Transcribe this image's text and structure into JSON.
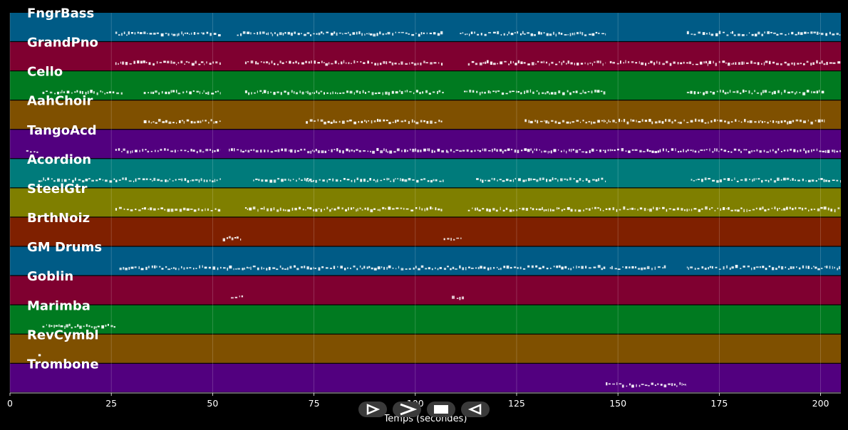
{
  "chart_data": {
    "type": "piano-roll",
    "xlabel": "Temps (secondes)",
    "xlim": [
      0,
      205
    ],
    "xticks": [
      0,
      25,
      50,
      75,
      100,
      125,
      150,
      175,
      200
    ],
    "grid": true,
    "tracks": [
      {
        "name": "FngrBass",
        "color": "#005b86",
        "segments": [
          [
            26,
            52
          ],
          [
            56,
            107
          ],
          [
            111,
            147
          ],
          [
            167,
            205
          ]
        ]
      },
      {
        "name": "GrandPno",
        "color": "#7f0030",
        "segments": [
          [
            26,
            52
          ],
          [
            58,
            107
          ],
          [
            113,
            147
          ],
          [
            148,
            205
          ]
        ]
      },
      {
        "name": "Cello",
        "color": "#007a20",
        "segments": [
          [
            8,
            28
          ],
          [
            33,
            52
          ],
          [
            58,
            107
          ],
          [
            112,
            147
          ],
          [
            167,
            201
          ]
        ]
      },
      {
        "name": "AahChoir",
        "color": "#7f5000",
        "segments": [
          [
            33,
            52
          ],
          [
            73,
            107
          ],
          [
            127,
            201
          ]
        ]
      },
      {
        "name": "TangoAcd",
        "color": "#52007f",
        "segments": [
          [
            4,
            7
          ],
          [
            26,
            52
          ],
          [
            54,
            108
          ],
          [
            108,
            205
          ]
        ]
      },
      {
        "name": "Acordion",
        "color": "#007b7b",
        "segments": [
          [
            7,
            52
          ],
          [
            60,
            75
          ],
          [
            73,
            107
          ],
          [
            115,
            147
          ],
          [
            168,
            205
          ]
        ]
      },
      {
        "name": "SteelGtr",
        "color": "#7f7f00",
        "segments": [
          [
            26,
            52
          ],
          [
            58,
            107
          ],
          [
            113,
            205
          ]
        ]
      },
      {
        "name": "BrthNoiz",
        "color": "#7f2000",
        "segments": [
          [
            52.5,
            57
          ],
          [
            107,
            111.5
          ]
        ]
      },
      {
        "name": "GM Drums",
        "color": "#005b86",
        "segments": [
          [
            27,
            147
          ],
          [
            148,
            162
          ],
          [
            167,
            205
          ]
        ]
      },
      {
        "name": "Goblin",
        "color": "#7f0030",
        "segments": [
          [
            54.5,
            57.5
          ],
          [
            109,
            112
          ]
        ]
      },
      {
        "name": "Marimba",
        "color": "#007a20",
        "segments": [
          [
            8,
            26
          ]
        ]
      },
      {
        "name": "RevCymbl",
        "color": "#7f5000",
        "segments": [
          [
            7,
            7.6
          ]
        ]
      },
      {
        "name": "Trombone",
        "color": "#52007f",
        "segments": [
          [
            147,
            167
          ]
        ]
      }
    ]
  },
  "controls": {
    "play_forward": {
      "glyph": "⊳"
    },
    "fast_forward": {
      "glyph": ">"
    },
    "stop": {
      "glyph": "■"
    },
    "rewind": {
      "glyph": "<"
    }
  }
}
